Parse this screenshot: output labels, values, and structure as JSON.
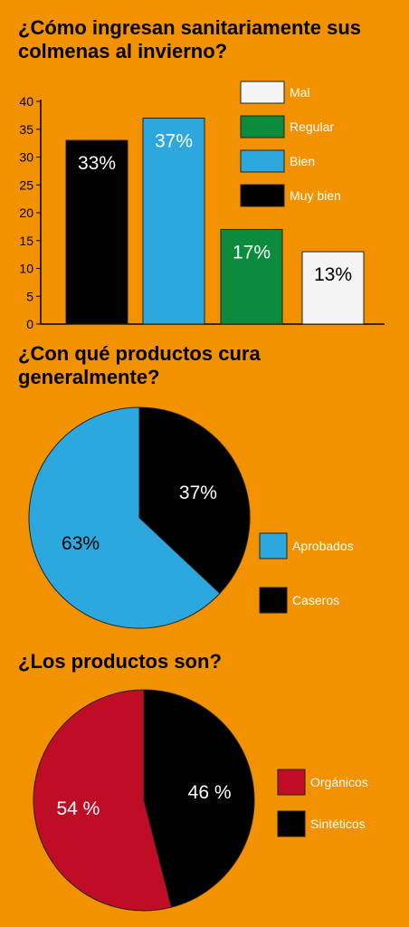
{
  "chart_data": [
    {
      "type": "bar",
      "title": "¿Cómo ingresan sanitariamente sus colmenas al invierno?",
      "categories": [
        "Muy bien",
        "Bien",
        "Regular",
        "Mal"
      ],
      "values": [
        33,
        37,
        17,
        13
      ],
      "data_labels": [
        "33%",
        "37%",
        "17%",
        "13%"
      ],
      "colors": [
        "#000000",
        "#2DA8DF",
        "#0B8B3B",
        "#F4F4F4"
      ],
      "label_colors": [
        "#FFFFFF",
        "#FFFFFF",
        "#FFFFFF",
        "#000000"
      ],
      "legend": [
        {
          "label": "Mal",
          "color": "#F4F4F4"
        },
        {
          "label": "Regular",
          "color": "#0B8B3B"
        },
        {
          "label": "Bien",
          "color": "#2DA8DF"
        },
        {
          "label": "Muy bien",
          "color": "#000000"
        }
      ],
      "legend_position": "top-right",
      "y_ticks": [
        "0",
        "5",
        "10",
        "15",
        "20",
        "25",
        "30",
        "35",
        "40"
      ],
      "ylim": [
        0,
        40
      ],
      "grid": false
    },
    {
      "type": "pie",
      "title": "¿Con qué productos cura generalmente?",
      "slices": [
        {
          "label": "Caseros",
          "value": 37,
          "text": "37%",
          "color": "#000000",
          "text_color": "#FFFFFF"
        },
        {
          "label": "Aprobados",
          "value": 63,
          "text": "63%",
          "color": "#2DA8DF",
          "text_color": "#000000"
        }
      ],
      "legend": [
        {
          "label": "Aprobados",
          "color": "#2DA8DF"
        },
        {
          "label": "Caseros",
          "color": "#000000"
        }
      ],
      "legend_position": "right"
    },
    {
      "type": "pie",
      "title": "¿Los productos son?",
      "slices": [
        {
          "label": "Sintéticos",
          "value": 46,
          "text": "46 %",
          "color": "#000000",
          "text_color": "#FFFFFF"
        },
        {
          "label": "Orgánicos",
          "value": 54,
          "text": "54 %",
          "color": "#C00D26",
          "text_color": "#FFFFFF"
        }
      ],
      "legend": [
        {
          "label": "Orgánicos",
          "color": "#C00D26"
        },
        {
          "label": "Sintéticos",
          "color": "#000000"
        }
      ],
      "legend_position": "right"
    }
  ],
  "colors": {
    "background": "#F39200",
    "text": "#000000",
    "legend_text": "#FFFFFF"
  }
}
